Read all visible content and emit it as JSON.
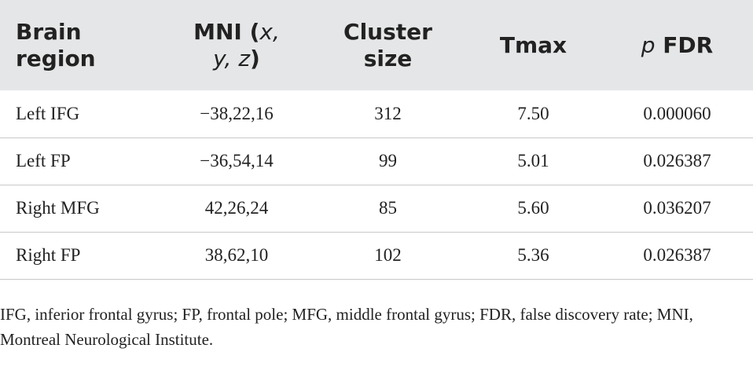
{
  "table": {
    "header": [
      [
        {
          "text": "Brain region"
        }
      ],
      [
        {
          "text": "MNI"
        },
        {
          "text": " ("
        },
        {
          "text": "x, y, z",
          "italic": true
        },
        {
          "text": ")"
        }
      ],
      [
        {
          "text": "Cluster size"
        }
      ],
      [
        {
          "text": "Tmax"
        }
      ],
      [
        {
          "text": "p",
          "italic": true
        },
        {
          "text": " FDR"
        }
      ]
    ],
    "rows": [
      [
        "Left IFG",
        "−38,22,16",
        "312",
        "7.50",
        "0.000060"
      ],
      [
        "Left FP",
        "−36,54,14",
        "99",
        "5.01",
        "0.026387"
      ],
      [
        "Right MFG",
        "42,26,24",
        "85",
        "5.60",
        "0.036207"
      ],
      [
        "Right FP",
        "38,62,10",
        "102",
        "5.36",
        "0.026387"
      ]
    ],
    "footnote": "IFG, inferior frontal gyrus; FP, frontal pole; MFG, middle frontal gyrus; FDR, false discovery rate; MNI, Montreal Neurological Institute."
  }
}
